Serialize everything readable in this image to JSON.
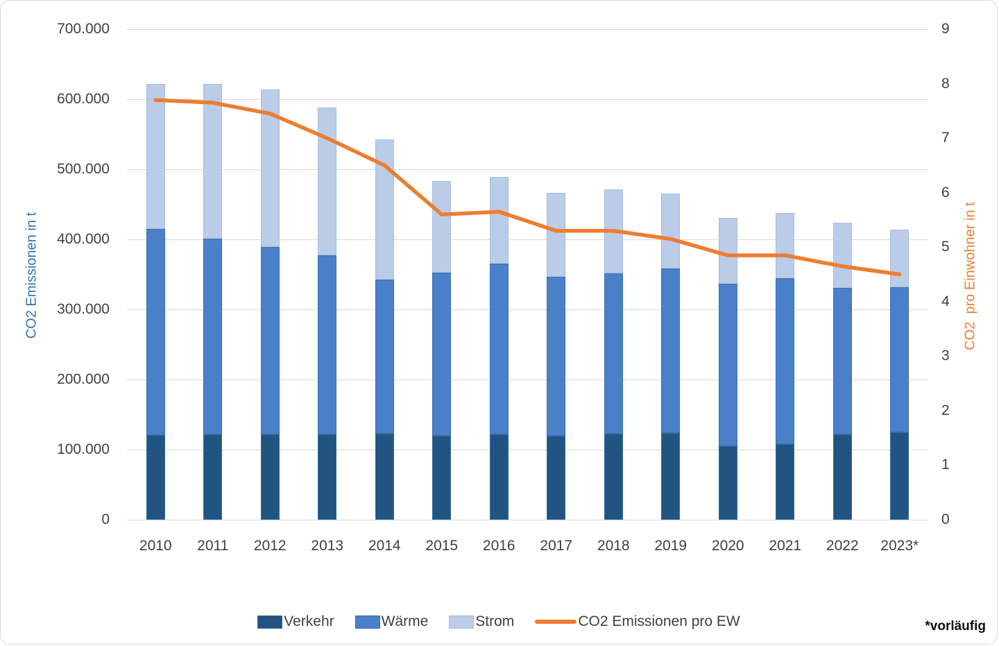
{
  "chart_data": {
    "type": "stacked_bar_with_line",
    "title": "",
    "categories": [
      "2010",
      "2011",
      "2012",
      "2013",
      "2014",
      "2015",
      "2016",
      "2017",
      "2018",
      "2019",
      "2020",
      "2021",
      "2022",
      "2023*"
    ],
    "series": [
      {
        "name": "Verkehr",
        "slug": "verkehr",
        "color": "#215481",
        "border": "#2e6da4",
        "values": [
          121000,
          122000,
          122000,
          122000,
          123000,
          120000,
          122000,
          120000,
          123000,
          124000,
          105000,
          108000,
          122000,
          125000
        ]
      },
      {
        "name": "Wärme",
        "slug": "waerme",
        "color": "#4a80c9",
        "border": "#3a6fb0",
        "values": [
          294000,
          279000,
          267000,
          255000,
          220000,
          232000,
          243000,
          227000,
          228000,
          234000,
          232000,
          237000,
          209000,
          207000
        ]
      },
      {
        "name": "Strom",
        "slug": "strom",
        "color": "#bacce8",
        "border": "#a6bede",
        "values": [
          207000,
          221000,
          225000,
          211000,
          200000,
          131000,
          124000,
          119000,
          120000,
          107000,
          94000,
          93000,
          93000,
          82000
        ]
      }
    ],
    "bar_totals": [
      622000,
      622000,
      614000,
      588000,
      543000,
      483000,
      489000,
      466000,
      471000,
      465000,
      431000,
      438000,
      424000,
      414000
    ],
    "line_series": {
      "name": "CO2 Emissionen pro EW",
      "slug": "co2-pro-ew",
      "color": "#ed7d31",
      "axis": "right",
      "values": [
        7.7,
        7.65,
        7.45,
        7.0,
        6.5,
        5.6,
        5.65,
        5.3,
        5.3,
        5.15,
        4.85,
        4.85,
        4.65,
        4.5
      ]
    },
    "left_axis": {
      "title": "CO2 Emissionen in t",
      "title_color": "#2e75b6",
      "min": 0,
      "max": 700000,
      "tick_step": 100000,
      "tick_labels_top_to_bottom": [
        "700.000",
        "600.000",
        "500.000",
        "400.000",
        "300.000",
        "200.000",
        "100.000",
        "0"
      ]
    },
    "right_axis": {
      "title": "CO2  pro Einwohner in t",
      "title_color": "#ed7d31",
      "min": 0,
      "max": 9,
      "tick_step": 1,
      "tick_labels_top_to_bottom": [
        "9",
        "8",
        "7",
        "6",
        "5",
        "4",
        "3",
        "2",
        "1",
        "0"
      ]
    },
    "grid": true,
    "legend_position": "bottom",
    "colors": {
      "gridline": "#d9d9d9",
      "tick_text": "#404040",
      "background": "#ffffff",
      "frame_border": "#d9d9d9"
    }
  },
  "footnote": {
    "text": "*vorläufig"
  }
}
